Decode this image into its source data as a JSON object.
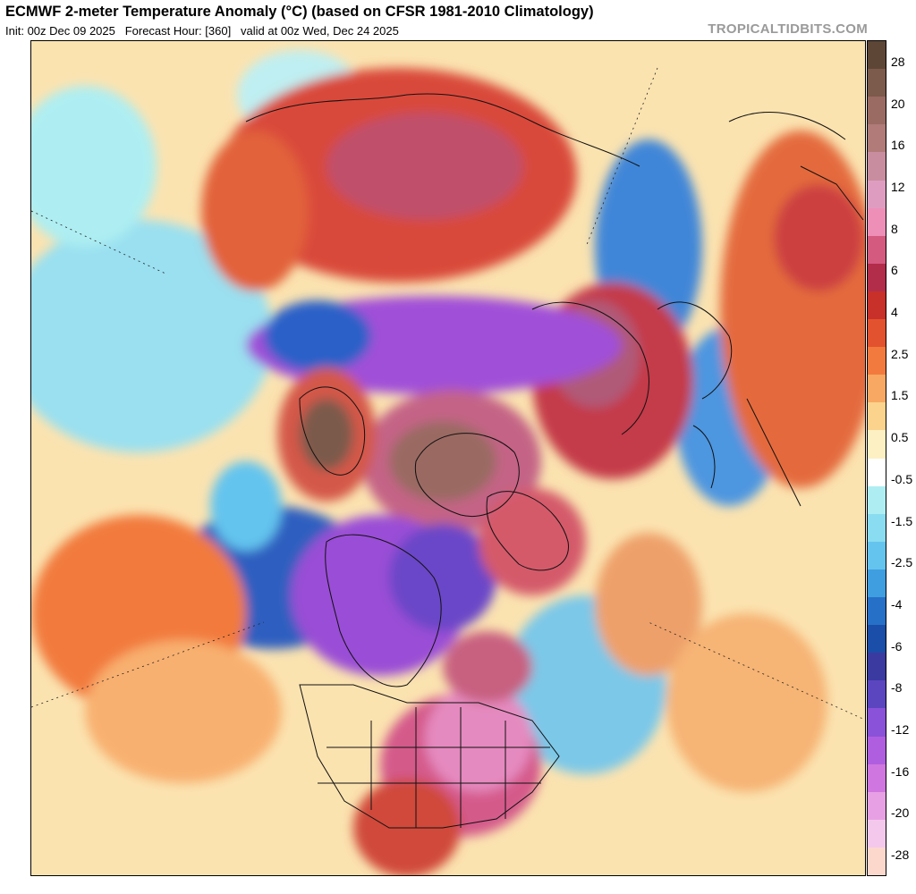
{
  "header": {
    "title": "ECMWF 2-meter Temperature Anomaly (°C) (based on CFSR 1981-2010 Climatology)",
    "subtitle": "Init: 00z Dec 09 2025   Forecast Hour: [360]   valid at 00z Wed, Dec 24 2025",
    "brand": "TROPICALTIDBITS.COM"
  },
  "map": {
    "projection": "north-polar-stereographic",
    "region": "Northern Hemisphere",
    "variable": "2-meter temperature anomaly"
  },
  "colorbar": {
    "unit": "°C",
    "segments": [
      {
        "color": "#5e4636"
      },
      {
        "color": "#7c5a4c"
      },
      {
        "color": "#9a6b62"
      },
      {
        "color": "#b07b78"
      },
      {
        "color": "#c88ea0"
      },
      {
        "color": "#de9dc0"
      },
      {
        "color": "#ee8fb8"
      },
      {
        "color": "#d45a80"
      },
      {
        "color": "#b22d4a"
      },
      {
        "color": "#c8302a"
      },
      {
        "color": "#e2522e"
      },
      {
        "color": "#f27a3e"
      },
      {
        "color": "#f8a862"
      },
      {
        "color": "#fbd38c"
      },
      {
        "color": "#fdf0c2"
      },
      {
        "color": "#ffffff"
      },
      {
        "color": "#aeeef2"
      },
      {
        "color": "#8adcf0"
      },
      {
        "color": "#64c4ee"
      },
      {
        "color": "#3f9ee0"
      },
      {
        "color": "#2670c8"
      },
      {
        "color": "#1a4ea8"
      },
      {
        "color": "#3a3aa0"
      },
      {
        "color": "#5c46c0"
      },
      {
        "color": "#8a52d8"
      },
      {
        "color": "#b05ee0"
      },
      {
        "color": "#d076e0"
      },
      {
        "color": "#e8a0e4"
      },
      {
        "color": "#f4c8ec"
      },
      {
        "color": "#fcd8cc"
      }
    ],
    "labels": [
      "28",
      "20",
      "16",
      "12",
      "8",
      "6",
      "4",
      "2.5",
      "1.5",
      "0.5",
      "-0.5",
      "-1.5",
      "-2.5",
      "-4",
      "-6",
      "-8",
      "-12",
      "-16",
      "-20",
      "-28"
    ]
  }
}
